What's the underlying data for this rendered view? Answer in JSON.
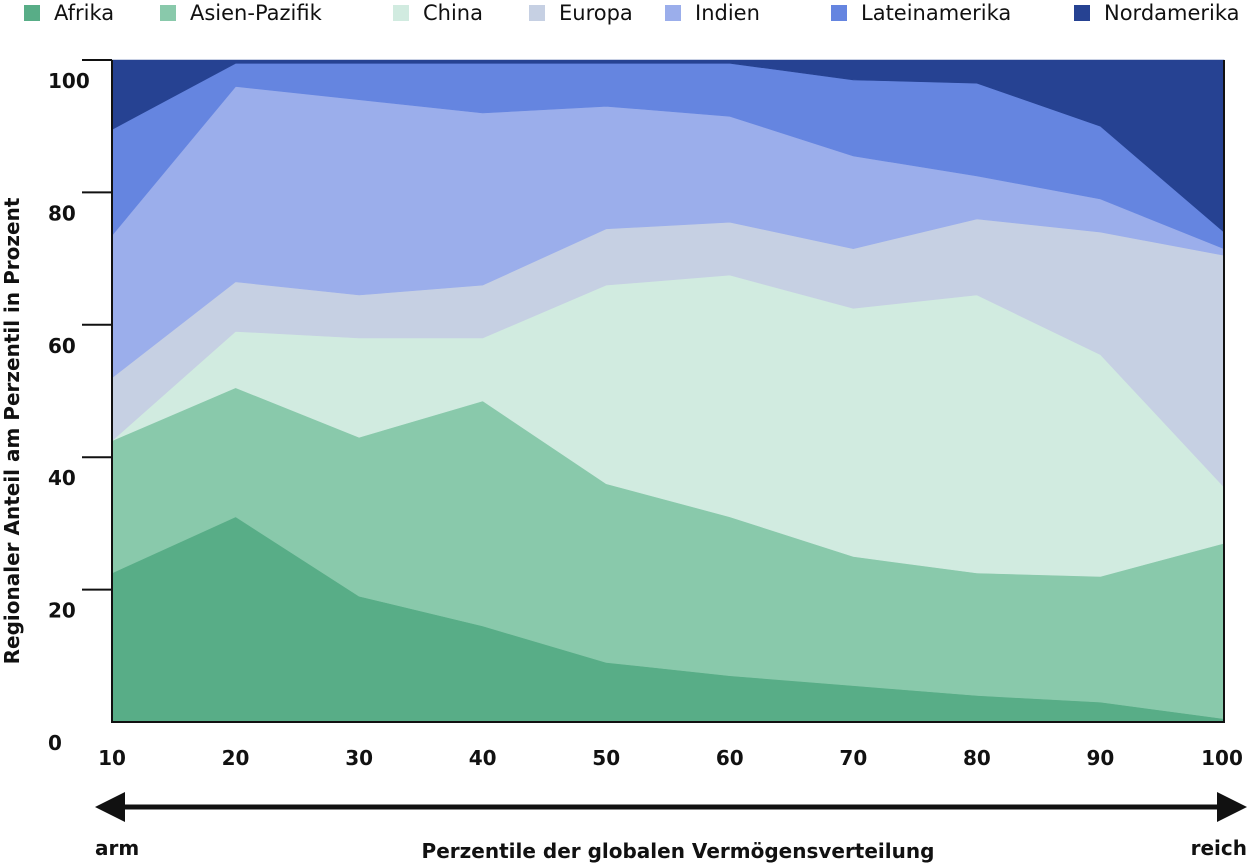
{
  "chart_data": {
    "type": "area",
    "stacked": true,
    "title": "",
    "xlabel": "Perzentile der globalen Vermögensverteilung",
    "ylabel": "Regionaler Anteil am Perzentil in Prozent",
    "x": [
      10,
      20,
      30,
      40,
      50,
      60,
      70,
      80,
      90,
      100
    ],
    "xlim": [
      10,
      100
    ],
    "ylim": [
      0,
      100
    ],
    "yticks": [
      0,
      20,
      40,
      60,
      80,
      100
    ],
    "xticks": [
      10,
      20,
      30,
      40,
      50,
      60,
      70,
      80,
      90,
      100
    ],
    "grid": false,
    "legend_position": "top",
    "x_direction": {
      "left_label": "arm",
      "right_label": "reich"
    },
    "series": [
      {
        "name": "Afrika",
        "color": "#58ad87",
        "values": [
          22.5,
          31,
          19,
          14.5,
          9,
          7,
          5.5,
          4,
          3,
          0.5
        ]
      },
      {
        "name": "Asien-Pazifik",
        "color": "#89c9ab",
        "values": [
          20,
          19.5,
          24,
          34,
          27,
          24,
          19.5,
          18.5,
          19,
          26.5
        ]
      },
      {
        "name": "China",
        "color": "#d1ebe0",
        "values": [
          0,
          8.5,
          15,
          9.5,
          30,
          36.5,
          37.5,
          42,
          33.5,
          8.5
        ]
      },
      {
        "name": "Europa",
        "color": "#c6d0e3",
        "values": [
          9.5,
          7.5,
          6.5,
          8,
          8.5,
          8,
          9,
          11.5,
          18.5,
          35
        ]
      },
      {
        "name": "Indien",
        "color": "#9baeeb",
        "values": [
          21.5,
          29.5,
          29.5,
          26,
          18.5,
          16,
          14,
          6.5,
          5,
          1
        ]
      },
      {
        "name": "Lateinamerika",
        "color": "#6585e0",
        "values": [
          16,
          3.5,
          5.5,
          7.5,
          6.5,
          8,
          11.5,
          14,
          11,
          2.5
        ]
      },
      {
        "name": "Nordamerika",
        "color": "#264292",
        "values": [
          10.5,
          0.5,
          0.5,
          0.5,
          0.5,
          0.5,
          3,
          3.5,
          10,
          26
        ]
      }
    ]
  }
}
